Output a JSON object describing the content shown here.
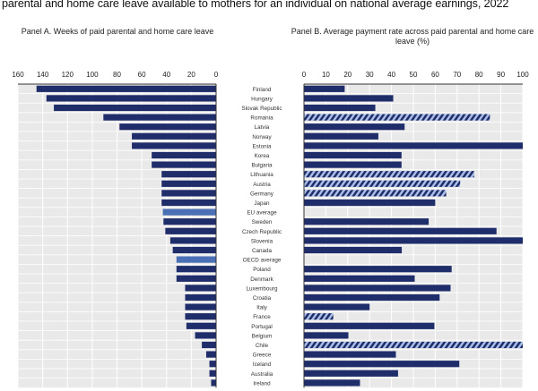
{
  "title": "parental and home care leave available to mothers for an individual on national average earnings, 2022",
  "colors": {
    "bar": "#1f2d6b",
    "average": "#4a6fb5",
    "hatch_bg": "#a9bde6",
    "plot_bg": "#e9e9e9"
  },
  "chart_data": [
    {
      "type": "bar",
      "orientation": "horizontal",
      "direction": "right-to-left",
      "title": "Panel A. Weeks of paid parental and home care leave",
      "xlim": [
        0,
        160
      ],
      "xticks": [
        160,
        140,
        120,
        100,
        80,
        60,
        40,
        20,
        0
      ],
      "grid": true,
      "categories": [
        "Finland",
        "Hungary",
        "Slovak Republic",
        "Romania",
        "Latvia",
        "Norway",
        "Estonia",
        "Korea",
        "Bulgaria",
        "Lithuania",
        "Austria",
        "Germany",
        "Japan",
        "EU average",
        "Sweden",
        "Czech Republic",
        "Slovenia",
        "Canada",
        "OECD average",
        "Poland",
        "Denmark",
        "Luxembourg",
        "Croatia",
        "Italy",
        "France",
        "Portugal",
        "Belgium",
        "Chile",
        "Greece",
        "Iceland",
        "Australia",
        "Ireland"
      ],
      "values": [
        145,
        137,
        131,
        91,
        78,
        68,
        68,
        52,
        52,
        44,
        44,
        44,
        44,
        43,
        42.5,
        41,
        37,
        35,
        32,
        32,
        32,
        25,
        25,
        25,
        25,
        24,
        17,
        11.5,
        8,
        5.4,
        5.4,
        4
      ],
      "highlighted": [
        "EU average",
        "OECD average"
      ]
    },
    {
      "type": "bar",
      "orientation": "horizontal",
      "title": "Panel B. Average payment rate across paid parental and home care leave (%)",
      "xlim": [
        0,
        100
      ],
      "xticks": [
        0,
        10,
        20,
        30,
        40,
        50,
        60,
        70,
        80,
        90,
        100
      ],
      "grid": true,
      "categories": [
        "Finland",
        "Hungary",
        "Slovak Republic",
        "Romania",
        "Latvia",
        "Norway",
        "Estonia",
        "Korea",
        "Bulgaria",
        "Lithuania",
        "Austria",
        "Germany",
        "Japan",
        "EU average",
        "Sweden",
        "Czech Republic",
        "Slovenia",
        "Canada",
        "OECD average",
        "Poland",
        "Denmark",
        "Luxembourg",
        "Croatia",
        "Italy",
        "France",
        "Portugal",
        "Belgium",
        "Chile",
        "Greece",
        "Iceland",
        "Australia",
        "Ireland"
      ],
      "values": [
        18.6,
        40.8,
        32.6,
        85,
        46,
        34,
        100,
        44.6,
        44.6,
        77.8,
        71.4,
        65,
        60,
        null,
        57,
        88,
        100,
        44.7,
        null,
        67.5,
        50.6,
        67,
        62,
        30,
        13.4,
        59.6,
        20.3,
        100,
        42,
        71,
        43,
        25.6
      ],
      "hatched": [
        "Romania",
        "Lithuania",
        "Austria",
        "Germany",
        "France",
        "Chile"
      ]
    }
  ]
}
